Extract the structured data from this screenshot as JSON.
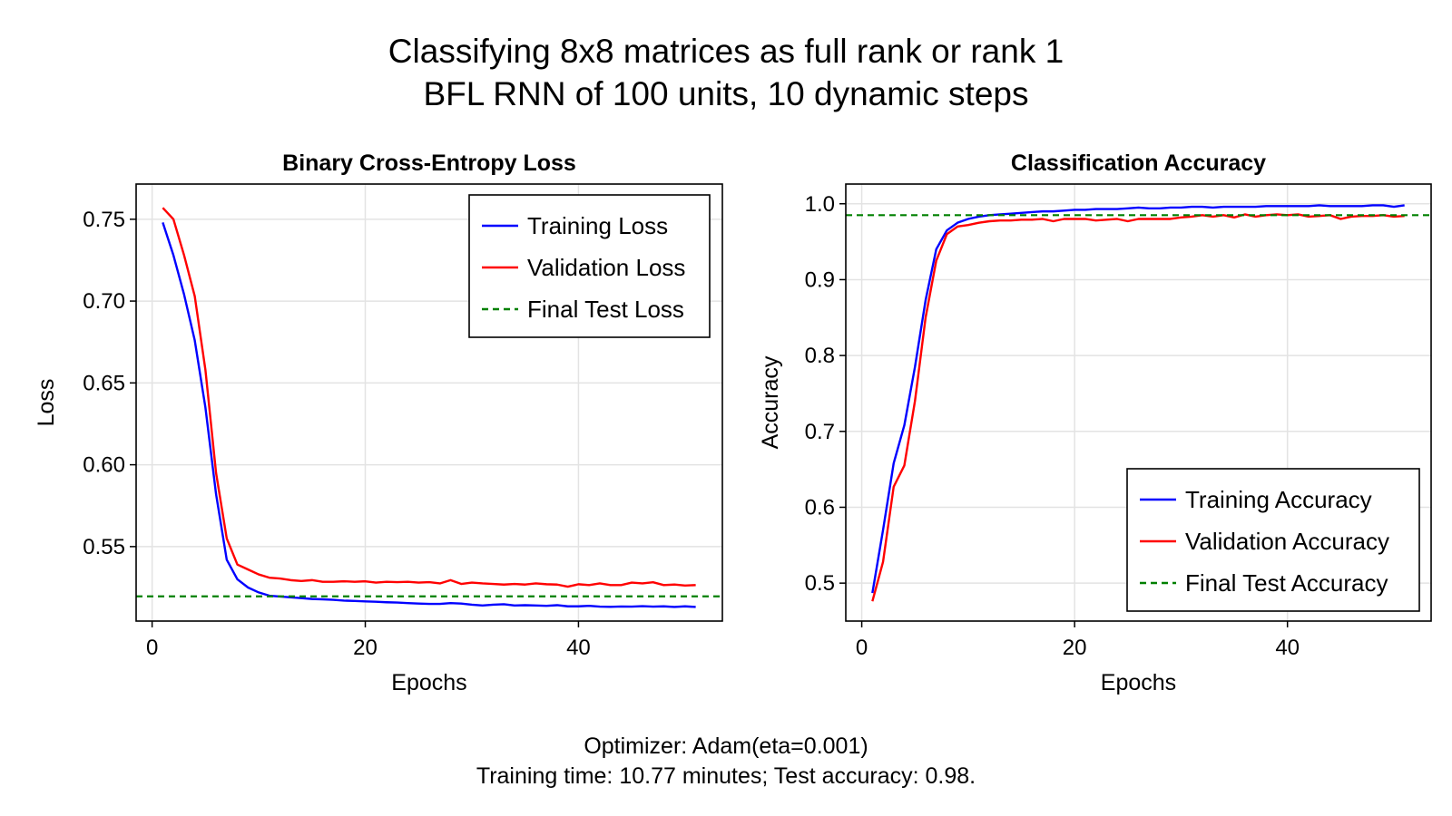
{
  "figure": {
    "title_line1": "Classifying 8x8 matrices as full rank or rank 1",
    "title_line2": "BFL RNN of 100 units, 10 dynamic steps",
    "footer_line1": "Optimizer: Adam(eta=0.001)",
    "footer_line2": "Training time: 10.77 minutes; Test accuracy: 0.98."
  },
  "chart_data": [
    {
      "type": "line",
      "title": "Binary Cross-Entropy Loss",
      "xlabel": "Epochs",
      "ylabel": "Loss",
      "xlim": [
        -1.5,
        53.5
      ],
      "ylim": [
        0.5045,
        0.7715
      ],
      "xticks": [
        0,
        20,
        40
      ],
      "xtick_labels": [
        "0",
        "20",
        "40"
      ],
      "yticks": [
        0.55,
        0.6,
        0.65,
        0.7,
        0.75
      ],
      "ytick_labels": [
        "0.55",
        "0.60",
        "0.65",
        "0.70",
        "0.75"
      ],
      "grid": true,
      "legend_position": "top-right",
      "x": [
        1,
        2,
        3,
        4,
        5,
        6,
        7,
        8,
        9,
        10,
        11,
        12,
        13,
        14,
        15,
        16,
        17,
        18,
        19,
        20,
        21,
        22,
        23,
        24,
        25,
        26,
        27,
        28,
        29,
        30,
        31,
        32,
        33,
        34,
        35,
        36,
        37,
        38,
        39,
        40,
        41,
        42,
        43,
        44,
        45,
        46,
        47,
        48,
        49,
        50,
        51
      ],
      "series": [
        {
          "name": "Training Loss",
          "color": "#0000ff",
          "style": "solid",
          "values": [
            0.748,
            0.728,
            0.704,
            0.676,
            0.635,
            0.582,
            0.542,
            0.53,
            0.525,
            0.522,
            0.52,
            0.5195,
            0.519,
            0.5185,
            0.518,
            0.5178,
            0.5175,
            0.517,
            0.5168,
            0.5165,
            0.5163,
            0.516,
            0.5158,
            0.5155,
            0.5152,
            0.515,
            0.515,
            0.5155,
            0.5152,
            0.5145,
            0.514,
            0.5145,
            0.5148,
            0.514,
            0.5142,
            0.514,
            0.5138,
            0.5142,
            0.5135,
            0.5135,
            0.5138,
            0.5133,
            0.5132,
            0.5134,
            0.5133,
            0.5136,
            0.5133,
            0.5135,
            0.5131,
            0.5135,
            0.5131
          ]
        },
        {
          "name": "Validation Loss",
          "color": "#ff0000",
          "style": "solid",
          "values": [
            0.757,
            0.75,
            0.728,
            0.703,
            0.658,
            0.595,
            0.555,
            0.539,
            0.536,
            0.533,
            0.531,
            0.5305,
            0.5295,
            0.529,
            0.5295,
            0.5285,
            0.5285,
            0.5288,
            0.5285,
            0.5288,
            0.528,
            0.5285,
            0.5283,
            0.5285,
            0.528,
            0.5283,
            0.5275,
            0.5295,
            0.5272,
            0.528,
            0.5275,
            0.5272,
            0.5268,
            0.5272,
            0.5268,
            0.5275,
            0.527,
            0.5268,
            0.5255,
            0.527,
            0.5265,
            0.5275,
            0.5265,
            0.5265,
            0.528,
            0.5275,
            0.5282,
            0.5265,
            0.5268,
            0.5262,
            0.5265
          ]
        },
        {
          "name": "Final Test Loss",
          "color": "#008000",
          "style": "dashed",
          "constant": 0.5196
        }
      ]
    },
    {
      "type": "line",
      "title": "Classification Accuracy",
      "xlabel": "Epochs",
      "ylabel": "Accuracy",
      "xlim": [
        -1.5,
        53.5
      ],
      "ylim": [
        0.45,
        1.026
      ],
      "xticks": [
        0,
        20,
        40
      ],
      "xtick_labels": [
        "0",
        "20",
        "40"
      ],
      "yticks": [
        0.5,
        0.6,
        0.7,
        0.8,
        0.9,
        1.0
      ],
      "ytick_labels": [
        "0.5",
        "0.6",
        "0.7",
        "0.8",
        "0.9",
        "1.0"
      ],
      "grid": true,
      "legend_position": "bottom-right",
      "x": [
        1,
        2,
        3,
        4,
        5,
        6,
        7,
        8,
        9,
        10,
        11,
        12,
        13,
        14,
        15,
        16,
        17,
        18,
        19,
        20,
        21,
        22,
        23,
        24,
        25,
        26,
        27,
        28,
        29,
        30,
        31,
        32,
        33,
        34,
        35,
        36,
        37,
        38,
        39,
        40,
        41,
        42,
        43,
        44,
        45,
        46,
        47,
        48,
        49,
        50,
        51
      ],
      "series": [
        {
          "name": "Training Accuracy",
          "color": "#0000ff",
          "style": "solid",
          "values": [
            0.487,
            0.57,
            0.658,
            0.708,
            0.785,
            0.873,
            0.94,
            0.965,
            0.975,
            0.98,
            0.983,
            0.985,
            0.986,
            0.987,
            0.988,
            0.989,
            0.99,
            0.99,
            0.991,
            0.992,
            0.992,
            0.993,
            0.993,
            0.993,
            0.994,
            0.995,
            0.994,
            0.994,
            0.995,
            0.995,
            0.996,
            0.996,
            0.995,
            0.996,
            0.996,
            0.996,
            0.996,
            0.997,
            0.997,
            0.997,
            0.997,
            0.997,
            0.998,
            0.997,
            0.997,
            0.997,
            0.997,
            0.998,
            0.998,
            0.996,
            0.998
          ]
        },
        {
          "name": "Validation Accuracy",
          "color": "#ff0000",
          "style": "solid",
          "values": [
            0.476,
            0.528,
            0.627,
            0.655,
            0.74,
            0.85,
            0.925,
            0.96,
            0.97,
            0.972,
            0.975,
            0.977,
            0.978,
            0.978,
            0.979,
            0.979,
            0.98,
            0.977,
            0.98,
            0.98,
            0.98,
            0.978,
            0.979,
            0.98,
            0.977,
            0.98,
            0.98,
            0.98,
            0.98,
            0.982,
            0.983,
            0.985,
            0.983,
            0.985,
            0.982,
            0.986,
            0.983,
            0.985,
            0.986,
            0.985,
            0.986,
            0.983,
            0.984,
            0.985,
            0.98,
            0.983,
            0.984,
            0.984,
            0.985,
            0.983,
            0.984
          ]
        },
        {
          "name": "Final Test Accuracy",
          "color": "#008000",
          "style": "dashed",
          "constant": 0.985
        }
      ]
    }
  ]
}
